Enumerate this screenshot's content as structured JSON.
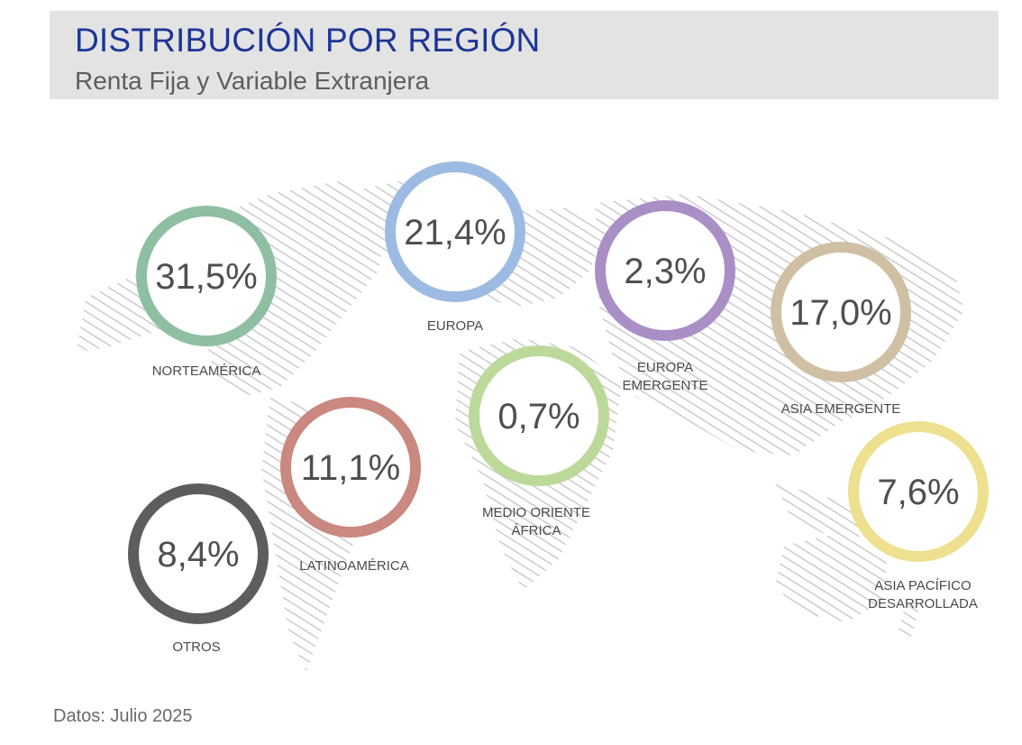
{
  "header": {
    "title": "DISTRIBUCIÓN POR REGIÓN",
    "subtitle": "Renta Fija y Variable Extranjera"
  },
  "footer": {
    "source": "Datos: Julio 2025"
  },
  "chart_data": {
    "type": "donut-bubbles",
    "title": "DISTRIBUCIÓN POR REGIÓN",
    "subtitle": "Renta Fija y Variable Extranjera",
    "unit": "%",
    "regions": [
      {
        "label_lines": [
          "NORTEAMÉRICA"
        ],
        "value": 31.5,
        "value_label": "31,5%",
        "color": "#8fbfa3"
      },
      {
        "label_lines": [
          "EUROPA"
        ],
        "value": 21.4,
        "value_label": "21,4%",
        "color": "#9dbbe2"
      },
      {
        "label_lines": [
          "EUROPA",
          "EMERGENTE"
        ],
        "value": 2.3,
        "value_label": "2,3%",
        "color": "#a98fc6"
      },
      {
        "label_lines": [
          "ASIA EMERGENTE"
        ],
        "value": 17.0,
        "value_label": "17,0%",
        "color": "#cfc0a5"
      },
      {
        "label_lines": [
          "MEDIO ORIENTE",
          "ÁFRICA"
        ],
        "value": 0.7,
        "value_label": "0,7%",
        "color": "#bcd99a"
      },
      {
        "label_lines": [
          "LATINOAMÉRICA"
        ],
        "value": 11.1,
        "value_label": "11,1%",
        "color": "#c98880"
      },
      {
        "label_lines": [
          "OTROS"
        ],
        "value": 8.4,
        "value_label": "8,4%",
        "color": "#5d5d5d"
      },
      {
        "label_lines": [
          "ASIA PACÍFICO",
          "DESARROLLADA"
        ],
        "value": 7.6,
        "value_label": "7,6%",
        "color": "#ede08e"
      }
    ]
  }
}
